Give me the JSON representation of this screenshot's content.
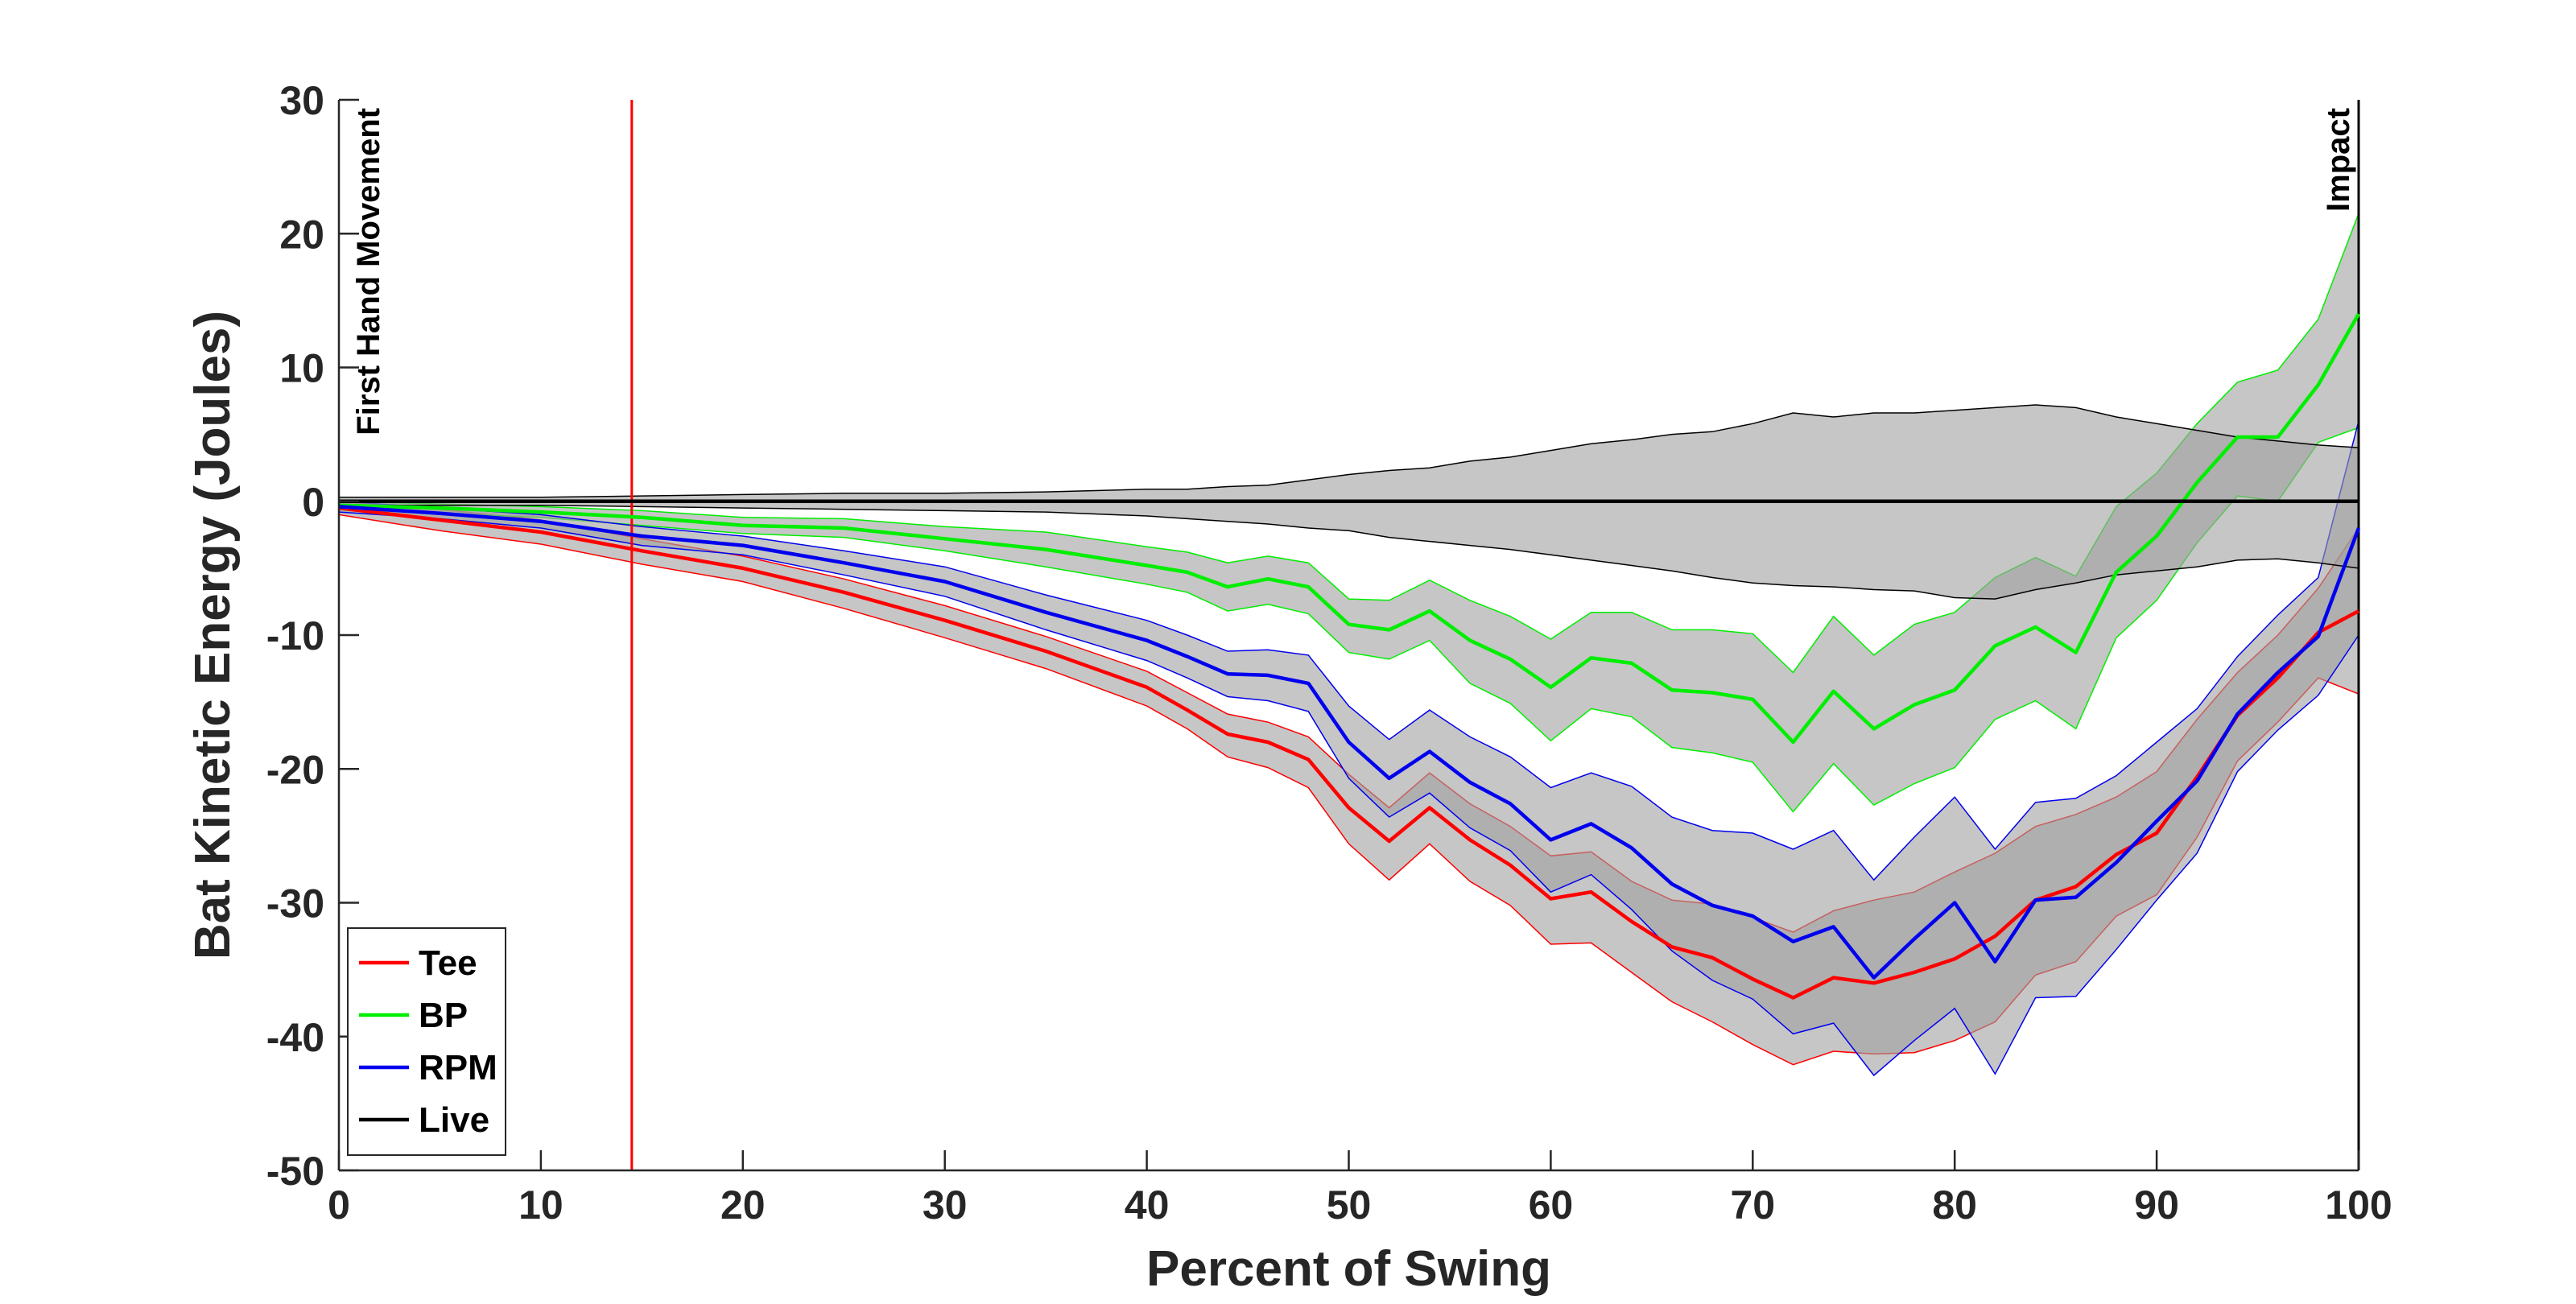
{
  "chart_data": {
    "type": "line",
    "xlabel": "Percent of Swing",
    "ylabel": "Bat Kinetic Energy (Joules)",
    "xlim": [
      0,
      100
    ],
    "ylim": [
      -50,
      30
    ],
    "xticks": [
      0,
      10,
      20,
      30,
      40,
      50,
      60,
      70,
      80,
      90,
      100
    ],
    "yticks": [
      30,
      20,
      10,
      0,
      -10,
      -20,
      -30,
      -40,
      -50
    ],
    "grid": false,
    "legend_position": "bottom-left",
    "annotations": [
      {
        "text": "First Hand Movement",
        "x": 0
      },
      {
        "text": "Impact",
        "x": 100
      }
    ],
    "reference_lines": [
      {
        "type": "vertical",
        "x": 14.5,
        "color": "#ff0000"
      },
      {
        "type": "vertical",
        "x": 100,
        "color": "#000000"
      }
    ],
    "band_color": "#a0a0a0",
    "x": [
      0,
      5,
      10,
      15,
      20,
      25,
      30,
      35,
      40,
      42,
      44,
      46,
      48,
      50,
      52,
      54,
      56,
      58,
      60,
      62,
      64,
      66,
      68,
      70,
      72,
      74,
      76,
      78,
      80,
      82,
      84,
      86,
      88,
      90,
      92,
      94,
      96,
      98,
      100
    ],
    "series": [
      {
        "name": "Tee",
        "color": "#ff0000",
        "values": [
          -0.5,
          -1.4,
          -2.3,
          -3.7,
          -5.0,
          -6.8,
          -8.9,
          -11.2,
          -13.9,
          -15.6,
          -17.4,
          -18.0,
          -19.3,
          -22.9,
          -25.4,
          -22.9,
          -25.3,
          -27.2,
          -29.7,
          -29.2,
          -31.4,
          -33.3,
          -34.1,
          -35.7,
          -37.1,
          -35.6,
          -36.0,
          -35.2,
          -34.2,
          -32.5,
          -29.8,
          -28.8,
          -26.4,
          -24.8,
          -20.6,
          -16.0,
          -13.2,
          -9.8,
          -8.2
        ],
        "upper": [
          0.0,
          -0.6,
          -1.4,
          -2.8,
          -4.1,
          -5.8,
          -7.8,
          -10.1,
          -12.7,
          -14.3,
          -15.9,
          -16.5,
          -17.6,
          -20.4,
          -22.9,
          -20.3,
          -22.6,
          -24.3,
          -26.5,
          -26.2,
          -28.4,
          -29.8,
          -30.1,
          -31.1,
          -32.2,
          -30.6,
          -29.8,
          -29.2,
          -27.7,
          -26.3,
          -24.3,
          -23.4,
          -22.1,
          -20.2,
          -16.3,
          -12.8,
          -10.0,
          -6.5,
          -2.0
        ],
        "lower": [
          -1.0,
          -2.2,
          -3.2,
          -4.7,
          -6.0,
          -8.0,
          -10.2,
          -12.5,
          -15.3,
          -17.0,
          -19.1,
          -19.9,
          -21.4,
          -25.6,
          -28.3,
          -25.6,
          -28.4,
          -30.2,
          -33.1,
          -33.0,
          -35.2,
          -37.4,
          -38.9,
          -40.6,
          -42.1,
          -41.1,
          -41.3,
          -41.2,
          -40.3,
          -38.9,
          -35.4,
          -34.4,
          -31.0,
          -29.4,
          -25.1,
          -19.4,
          -16.5,
          -13.2,
          -14.4
        ]
      },
      {
        "name": "BP",
        "color": "#00ee00",
        "values": [
          -0.3,
          -0.5,
          -0.8,
          -1.2,
          -1.8,
          -2.0,
          -2.8,
          -3.6,
          -4.8,
          -5.3,
          -6.4,
          -5.8,
          -6.4,
          -9.2,
          -9.6,
          -8.2,
          -10.4,
          -11.8,
          -13.9,
          -11.7,
          -12.1,
          -14.1,
          -14.3,
          -14.8,
          -18.0,
          -14.2,
          -17.0,
          -15.2,
          -14.1,
          -10.8,
          -9.4,
          -11.3,
          -5.3,
          -2.6,
          1.4,
          4.8,
          4.8,
          8.7,
          14.0
        ],
        "upper": [
          0.0,
          -0.2,
          -0.4,
          -0.7,
          -1.2,
          -1.3,
          -1.9,
          -2.3,
          -3.4,
          -3.8,
          -4.6,
          -4.1,
          -4.6,
          -7.3,
          -7.4,
          -5.9,
          -7.4,
          -8.6,
          -10.3,
          -8.3,
          -8.3,
          -9.6,
          -9.6,
          -9.9,
          -12.8,
          -8.6,
          -11.5,
          -9.2,
          -8.3,
          -5.7,
          -4.2,
          -5.6,
          -0.4,
          2.1,
          5.8,
          8.9,
          9.8,
          13.6,
          21.5
        ],
        "lower": [
          -0.6,
          -0.9,
          -1.2,
          -1.8,
          -2.4,
          -2.7,
          -3.7,
          -4.9,
          -6.2,
          -6.8,
          -8.2,
          -7.7,
          -8.4,
          -11.3,
          -11.8,
          -10.4,
          -13.6,
          -15.1,
          -17.9,
          -15.5,
          -16.1,
          -18.4,
          -18.8,
          -19.5,
          -23.2,
          -19.6,
          -22.7,
          -21.1,
          -19.9,
          -16.3,
          -14.9,
          -17.0,
          -10.2,
          -7.4,
          -3.1,
          0.4,
          0.0,
          4.4,
          5.5
        ]
      },
      {
        "name": "RPM",
        "color": "#0000ee",
        "values": [
          -0.4,
          -0.9,
          -1.5,
          -2.6,
          -3.3,
          -4.6,
          -6.0,
          -8.3,
          -10.4,
          -11.6,
          -12.9,
          -13.0,
          -13.6,
          -18.0,
          -20.7,
          -18.7,
          -21.0,
          -22.6,
          -25.3,
          -24.1,
          -25.9,
          -28.6,
          -30.2,
          -31.0,
          -32.9,
          -31.8,
          -35.6,
          -32.7,
          -30.0,
          -34.4,
          -29.8,
          -29.6,
          -27.0,
          -23.9,
          -20.9,
          -15.9,
          -12.8,
          -10.1,
          -2.0
        ],
        "upper": [
          0.0,
          -0.5,
          -1.0,
          -1.9,
          -2.6,
          -3.7,
          -4.9,
          -7.0,
          -8.9,
          -10.0,
          -11.2,
          -11.1,
          -11.5,
          -15.3,
          -17.8,
          -15.6,
          -17.6,
          -19.1,
          -21.4,
          -20.3,
          -21.3,
          -23.6,
          -24.6,
          -24.8,
          -26.0,
          -24.6,
          -28.3,
          -25.1,
          -22.1,
          -26.0,
          -22.5,
          -22.2,
          -20.5,
          -18.0,
          -15.5,
          -11.6,
          -8.5,
          -5.7,
          6.0
        ],
        "lower": [
          -0.8,
          -1.3,
          -2.0,
          -3.3,
          -4.0,
          -5.5,
          -7.1,
          -9.6,
          -11.9,
          -13.2,
          -14.6,
          -14.9,
          -15.7,
          -20.7,
          -23.6,
          -21.8,
          -24.4,
          -26.1,
          -29.2,
          -27.9,
          -30.5,
          -33.6,
          -35.8,
          -37.2,
          -39.8,
          -39.0,
          -42.9,
          -40.3,
          -37.9,
          -42.8,
          -37.1,
          -37.0,
          -33.5,
          -29.8,
          -26.3,
          -20.2,
          -17.1,
          -14.5,
          -10.0
        ]
      },
      {
        "name": "Live",
        "color": "#000000",
        "values": [
          0,
          0,
          0,
          0,
          0,
          0,
          0,
          0,
          0,
          0,
          0,
          0,
          0,
          0,
          0,
          0,
          0,
          0,
          0,
          0,
          0,
          0,
          0,
          0,
          0,
          0,
          0,
          0,
          0,
          0,
          0,
          0,
          0,
          0,
          0,
          0,
          0,
          0,
          0
        ],
        "upper": [
          0.3,
          0.3,
          0.3,
          0.4,
          0.5,
          0.6,
          0.6,
          0.7,
          0.9,
          0.9,
          1.1,
          1.2,
          1.6,
          2.0,
          2.3,
          2.5,
          3.0,
          3.3,
          3.8,
          4.3,
          4.6,
          5.0,
          5.2,
          5.8,
          6.6,
          6.3,
          6.6,
          6.6,
          6.8,
          7.0,
          7.2,
          7.0,
          6.3,
          5.8,
          5.3,
          4.8,
          4.5,
          4.2,
          4.0
        ],
        "lower": [
          -0.3,
          -0.3,
          -0.3,
          -0.4,
          -0.5,
          -0.6,
          -0.7,
          -0.8,
          -1.1,
          -1.3,
          -1.5,
          -1.7,
          -2.0,
          -2.2,
          -2.7,
          -3.0,
          -3.3,
          -3.6,
          -4.0,
          -4.4,
          -4.8,
          -5.2,
          -5.7,
          -6.1,
          -6.3,
          -6.4,
          -6.6,
          -6.7,
          -7.2,
          -7.3,
          -6.6,
          -6.1,
          -5.5,
          -5.2,
          -4.9,
          -4.4,
          -4.3,
          -4.6,
          -5.0
        ]
      }
    ]
  }
}
